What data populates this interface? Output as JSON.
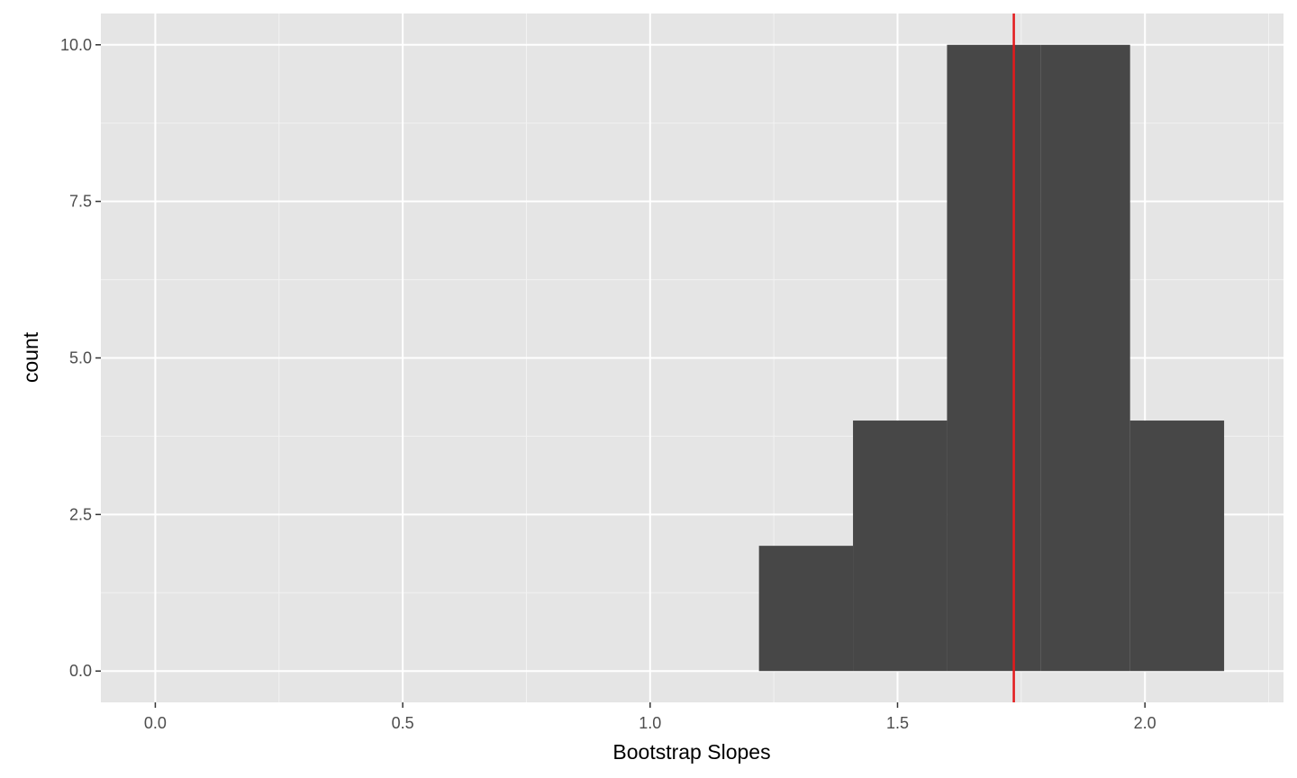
{
  "chart_data": {
    "type": "bar",
    "subtype": "histogram",
    "xlabel": "Bootstrap Slopes",
    "ylabel": "count",
    "xlim": [
      -0.11,
      2.28
    ],
    "ylim": [
      -0.5,
      10.5
    ],
    "x_ticks": [
      0.0,
      0.5,
      1.0,
      1.5,
      2.0
    ],
    "x_tick_labels": [
      "0.0",
      "0.5",
      "1.0",
      "1.5",
      "2.0"
    ],
    "y_ticks": [
      0.0,
      2.5,
      5.0,
      7.5,
      10.0
    ],
    "y_tick_labels": [
      "0.0",
      "2.5",
      "5.0",
      "7.5",
      "10.0"
    ],
    "bins": [
      {
        "x0": 1.22,
        "x1": 1.41,
        "count": 2
      },
      {
        "x0": 1.41,
        "x1": 1.6,
        "count": 4
      },
      {
        "x0": 1.6,
        "x1": 1.79,
        "count": 10
      },
      {
        "x0": 1.79,
        "x1": 1.97,
        "count": 10
      },
      {
        "x0": 1.97,
        "x1": 2.16,
        "count": 4
      }
    ],
    "reference_line": {
      "x": 1.735,
      "color": "#e41a1c"
    },
    "grid": true,
    "bar_color": "#474747",
    "panel_background": "#e5e5e5"
  }
}
